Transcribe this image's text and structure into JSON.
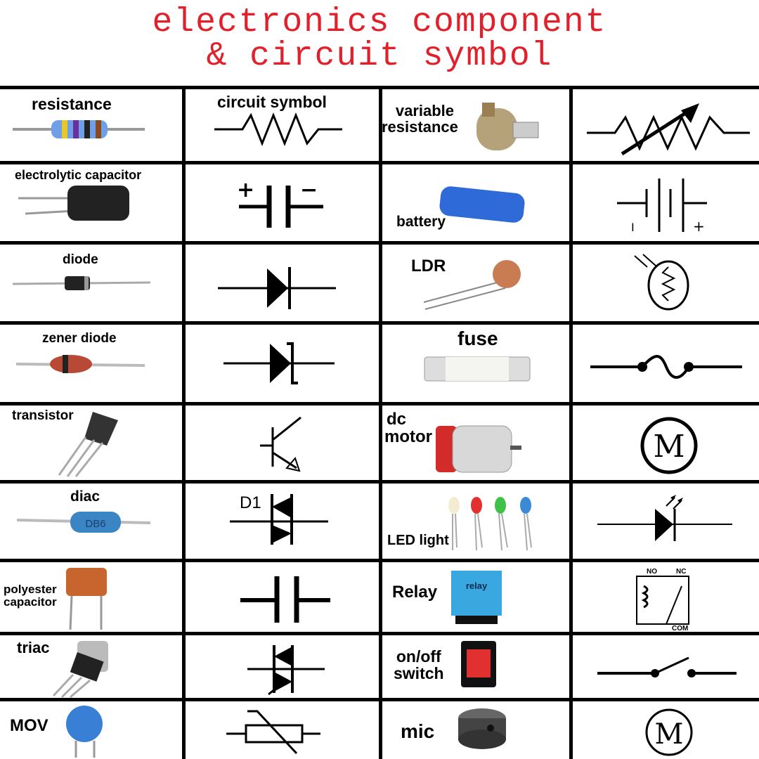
{
  "title": {
    "line1": "electronics component",
    "line2": "& circuit symbol"
  },
  "colors": {
    "title": "#e0202a",
    "grid": "#000000"
  },
  "header": {
    "symbol_col": "circuit symbol"
  },
  "rows": [
    {
      "left_label": "resistance",
      "right_label_1": "variable",
      "right_label_2": "resistance"
    },
    {
      "left_label": "electrolytic capacitor",
      "right_label": "battery"
    },
    {
      "left_label": "diode",
      "right_label": "LDR"
    },
    {
      "left_label": "zener diode",
      "right_label": "fuse"
    },
    {
      "left_label": "transistor",
      "right_label_1": "dc",
      "right_label_2": "motor"
    },
    {
      "left_label": "diac",
      "right_label": "LED light"
    },
    {
      "left_label_1": "polyester",
      "left_label_2": "capacitor",
      "right_label": "Relay"
    },
    {
      "left_label": "triac",
      "right_label_1": "on/off",
      "right_label_2": "switch"
    },
    {
      "left_label": "MOV",
      "right_label": "mic"
    }
  ],
  "symbol_text": {
    "cap_plus": "+",
    "cap_minus": "−",
    "bat_minus": "I",
    "bat_plus": "+",
    "diac_ref": "D1",
    "relay_no": "NO",
    "relay_nc": "NC",
    "relay_com": "COM",
    "relay_body": "relay",
    "diac_body": "DB6",
    "motor_letter": "M",
    "mic_letter": "M"
  }
}
